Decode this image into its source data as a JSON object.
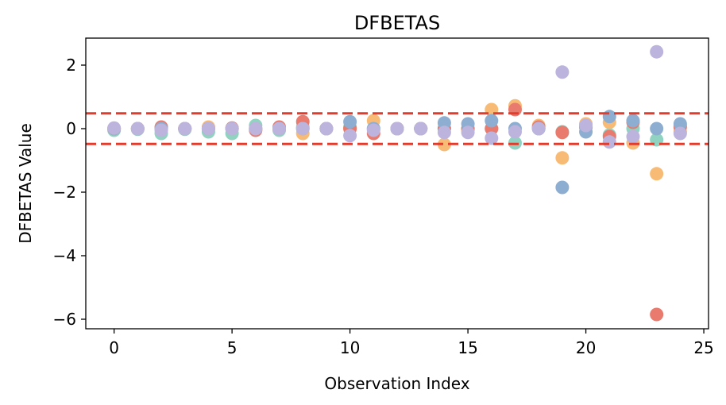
{
  "chart_data": {
    "type": "scatter",
    "title": "DFBETAS",
    "xlabel": "Observation Index",
    "ylabel": "DFBETAS Value",
    "xlim": [
      -1.2,
      25.2
    ],
    "ylim": [
      -6.3,
      2.85
    ],
    "xticks": [
      0,
      5,
      10,
      15,
      20,
      25
    ],
    "xtick_labels": [
      "0",
      "5",
      "10",
      "15",
      "20",
      "25"
    ],
    "yticks": [
      2,
      0,
      -2,
      -4,
      -6
    ],
    "ytick_labels": [
      "2",
      "0",
      "−2",
      "−4",
      "−6"
    ],
    "threshold_lines": [
      0.48,
      -0.48
    ],
    "threshold_color": "#e23c2c",
    "grid": false,
    "series": [
      {
        "color": "#8fd3c0",
        "x": [
          0,
          1,
          2,
          3,
          4,
          5,
          6,
          7,
          8,
          9,
          10,
          11,
          12,
          13,
          14,
          15,
          16,
          17,
          18,
          19,
          20,
          21,
          22,
          23,
          24
        ],
        "y": [
          -0.05,
          -0.02,
          -0.15,
          -0.02,
          -0.1,
          -0.15,
          0.1,
          -0.05,
          0.05,
          0.0,
          0.05,
          0.0,
          0.0,
          0.0,
          0.0,
          0.0,
          0.0,
          -0.45,
          0.0,
          -0.1,
          0.05,
          -0.2,
          0.0,
          -0.35,
          0.1
        ]
      },
      {
        "color": "#f7bb76",
        "x": [
          0,
          1,
          2,
          3,
          4,
          5,
          6,
          7,
          8,
          9,
          10,
          11,
          12,
          13,
          14,
          15,
          16,
          17,
          18,
          19,
          20,
          21,
          22,
          23,
          24
        ],
        "y": [
          0.0,
          0.0,
          0.0,
          0.0,
          0.05,
          0.0,
          0.0,
          0.0,
          -0.15,
          0.0,
          0.0,
          0.25,
          0.0,
          0.0,
          -0.5,
          -0.05,
          0.6,
          0.72,
          0.1,
          -0.92,
          0.15,
          0.2,
          -0.45,
          -1.42,
          -0.1
        ]
      },
      {
        "color": "#e87a6e",
        "x": [
          0,
          1,
          2,
          3,
          4,
          5,
          6,
          7,
          8,
          9,
          10,
          11,
          12,
          13,
          14,
          15,
          16,
          17,
          18,
          19,
          20,
          21,
          22,
          23,
          24
        ],
        "y": [
          0.0,
          0.0,
          0.05,
          0.0,
          0.0,
          0.02,
          -0.05,
          0.05,
          0.22,
          0.0,
          0.0,
          -0.15,
          0.0,
          0.0,
          0.0,
          0.0,
          0.0,
          0.6,
          0.05,
          -0.12,
          0.05,
          -0.25,
          0.2,
          -5.85,
          0.05
        ]
      },
      {
        "color": "#8eaed1",
        "x": [
          0,
          1,
          2,
          3,
          4,
          5,
          6,
          7,
          8,
          9,
          10,
          11,
          12,
          13,
          14,
          15,
          16,
          17,
          18,
          19,
          20,
          21,
          22,
          23,
          24
        ],
        "y": [
          0.0,
          0.0,
          0.0,
          0.0,
          0.0,
          0.0,
          0.0,
          0.0,
          0.0,
          0.0,
          0.22,
          0.0,
          0.0,
          0.0,
          0.18,
          0.15,
          0.25,
          0.0,
          0.0,
          -1.85,
          -0.1,
          0.38,
          0.25,
          0.0,
          0.15
        ]
      },
      {
        "color": "#bcb4dc",
        "x": [
          0,
          1,
          2,
          3,
          4,
          5,
          6,
          7,
          8,
          9,
          10,
          11,
          12,
          13,
          14,
          15,
          16,
          17,
          18,
          19,
          20,
          21,
          22,
          23,
          24
        ],
        "y": [
          0.02,
          0.0,
          -0.05,
          0.0,
          0.0,
          0.0,
          0.0,
          0.0,
          0.0,
          0.0,
          -0.22,
          -0.05,
          0.0,
          0.0,
          -0.12,
          -0.12,
          -0.3,
          -0.1,
          0.0,
          1.78,
          0.1,
          -0.42,
          -0.25,
          2.42,
          -0.15
        ]
      }
    ]
  }
}
